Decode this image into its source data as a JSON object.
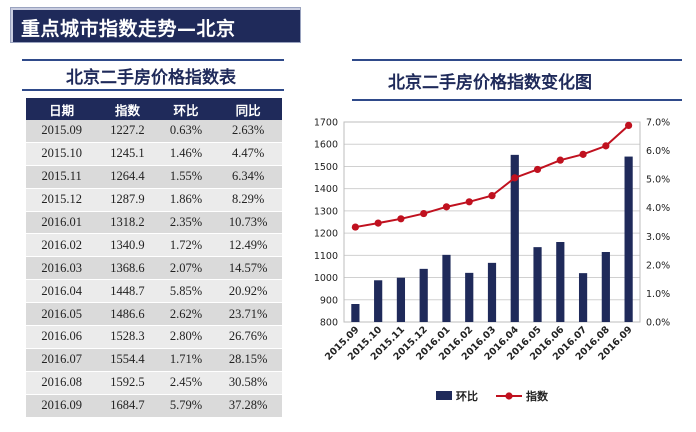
{
  "header": {
    "title": "重点城市指数走势—北京"
  },
  "table": {
    "title": "北京二手房价格指数表",
    "columns": [
      "日期",
      "指数",
      "环比",
      "同比"
    ],
    "rows": [
      [
        "2015.09",
        "1227.2",
        "0.63%",
        "2.63%"
      ],
      [
        "2015.10",
        "1245.1",
        "1.46%",
        "4.47%"
      ],
      [
        "2015.11",
        "1264.4",
        "1.55%",
        "6.34%"
      ],
      [
        "2015.12",
        "1287.9",
        "1.86%",
        "8.29%"
      ],
      [
        "2016.01",
        "1318.2",
        "2.35%",
        "10.73%"
      ],
      [
        "2016.02",
        "1340.9",
        "1.72%",
        "12.49%"
      ],
      [
        "2016.03",
        "1368.6",
        "2.07%",
        "14.57%"
      ],
      [
        "2016.04",
        "1448.7",
        "5.85%",
        "20.92%"
      ],
      [
        "2016.05",
        "1486.6",
        "2.62%",
        "23.71%"
      ],
      [
        "2016.06",
        "1528.3",
        "2.80%",
        "26.76%"
      ],
      [
        "2016.07",
        "1554.4",
        "1.71%",
        "28.15%"
      ],
      [
        "2016.08",
        "1592.5",
        "2.45%",
        "30.58%"
      ],
      [
        "2016.09",
        "1684.7",
        "5.79%",
        "37.28%"
      ]
    ]
  },
  "chart_data": {
    "type": "bar+line",
    "title": "北京二手房价格指数变化图",
    "categories": [
      "2015.09",
      "2015.10",
      "2015.11",
      "2015.12",
      "2016.01",
      "2016.02",
      "2016.03",
      "2016.04",
      "2016.05",
      "2016.06",
      "2016.07",
      "2016.08",
      "2016.09"
    ],
    "series": [
      {
        "name": "环比",
        "type": "bar",
        "axis": "right",
        "color": "#1f2a5a",
        "values": [
          0.63,
          1.46,
          1.55,
          1.86,
          2.35,
          1.72,
          2.07,
          5.85,
          2.62,
          2.8,
          1.71,
          2.45,
          5.79
        ]
      },
      {
        "name": "指数",
        "type": "line",
        "axis": "left",
        "color": "#c0111f",
        "values": [
          1227.2,
          1245.1,
          1264.4,
          1287.9,
          1318.2,
          1340.9,
          1368.6,
          1448.7,
          1486.6,
          1528.3,
          1554.4,
          1592.5,
          1684.7
        ]
      }
    ],
    "y_left": {
      "min": 800,
      "max": 1700,
      "step": 100,
      "ticks": [
        "800",
        "900",
        "1000",
        "1100",
        "1200",
        "1300",
        "1400",
        "1500",
        "1600",
        "1700"
      ]
    },
    "y_right": {
      "min": 0,
      "max": 7,
      "step": 1,
      "ticks": [
        "0.0%",
        "1.0%",
        "2.0%",
        "3.0%",
        "4.0%",
        "5.0%",
        "6.0%",
        "7.0%"
      ]
    },
    "grid": true,
    "legend_position": "bottom"
  }
}
